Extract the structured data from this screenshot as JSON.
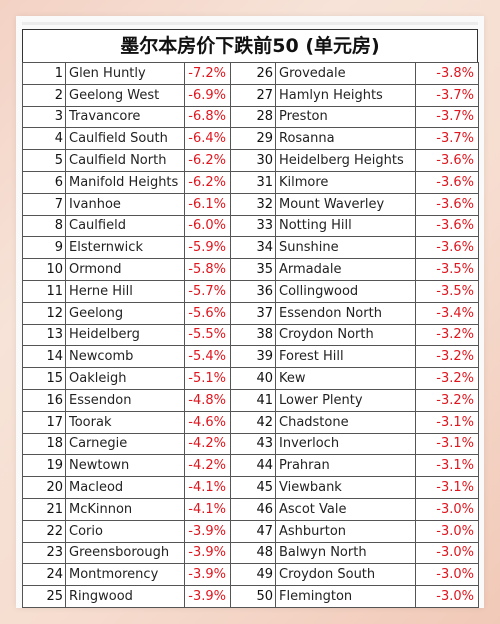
{
  "title": "墨尔本房价下跌前50 (单元房)",
  "rows": [
    {
      "left": {
        "rank": "1",
        "suburb": "Glen Huntly",
        "change": "-7.2%"
      },
      "right": {
        "rank": "26",
        "suburb": "Grovedale",
        "change": "-3.8%"
      }
    },
    {
      "left": {
        "rank": "2",
        "suburb": "Geelong West",
        "change": "-6.9%"
      },
      "right": {
        "rank": "27",
        "suburb": "Hamlyn Heights",
        "change": "-3.7%"
      }
    },
    {
      "left": {
        "rank": "3",
        "suburb": "Travancore",
        "change": "-6.8%"
      },
      "right": {
        "rank": "28",
        "suburb": "Preston",
        "change": "-3.7%"
      }
    },
    {
      "left": {
        "rank": "4",
        "suburb": "Caulfield South",
        "change": "-6.4%"
      },
      "right": {
        "rank": "29",
        "suburb": "Rosanna",
        "change": "-3.7%"
      }
    },
    {
      "left": {
        "rank": "5",
        "suburb": "Caulfield North",
        "change": "-6.2%"
      },
      "right": {
        "rank": "30",
        "suburb": "Heidelberg Heights",
        "change": "-3.6%"
      }
    },
    {
      "left": {
        "rank": "6",
        "suburb": "Manifold Heights",
        "change": "-6.2%"
      },
      "right": {
        "rank": "31",
        "suburb": "Kilmore",
        "change": "-3.6%"
      }
    },
    {
      "left": {
        "rank": "7",
        "suburb": "Ivanhoe",
        "change": "-6.1%"
      },
      "right": {
        "rank": "32",
        "suburb": "Mount Waverley",
        "change": "-3.6%"
      }
    },
    {
      "left": {
        "rank": "8",
        "suburb": "Caulfield",
        "change": "-6.0%"
      },
      "right": {
        "rank": "33",
        "suburb": "Notting Hill",
        "change": "-3.6%"
      }
    },
    {
      "left": {
        "rank": "9",
        "suburb": "Elsternwick",
        "change": "-5.9%"
      },
      "right": {
        "rank": "34",
        "suburb": "Sunshine",
        "change": "-3.6%"
      }
    },
    {
      "left": {
        "rank": "10",
        "suburb": "Ormond",
        "change": "-5.8%"
      },
      "right": {
        "rank": "35",
        "suburb": "Armadale",
        "change": "-3.5%"
      }
    },
    {
      "left": {
        "rank": "11",
        "suburb": "Herne Hill",
        "change": "-5.7%"
      },
      "right": {
        "rank": "36",
        "suburb": "Collingwood",
        "change": "-3.5%"
      }
    },
    {
      "left": {
        "rank": "12",
        "suburb": "Geelong",
        "change": "-5.6%"
      },
      "right": {
        "rank": "37",
        "suburb": "Essendon North",
        "change": "-3.4%"
      }
    },
    {
      "left": {
        "rank": "13",
        "suburb": "Heidelberg",
        "change": "-5.5%"
      },
      "right": {
        "rank": "38",
        "suburb": "Croydon North",
        "change": "-3.2%"
      }
    },
    {
      "left": {
        "rank": "14",
        "suburb": "Newcomb",
        "change": "-5.4%"
      },
      "right": {
        "rank": "39",
        "suburb": "Forest Hill",
        "change": "-3.2%"
      }
    },
    {
      "left": {
        "rank": "15",
        "suburb": "Oakleigh",
        "change": "-5.1%"
      },
      "right": {
        "rank": "40",
        "suburb": "Kew",
        "change": "-3.2%"
      }
    },
    {
      "left": {
        "rank": "16",
        "suburb": "Essendon",
        "change": "-4.8%"
      },
      "right": {
        "rank": "41",
        "suburb": "Lower Plenty",
        "change": "-3.2%"
      }
    },
    {
      "left": {
        "rank": "17",
        "suburb": "Toorak",
        "change": "-4.6%"
      },
      "right": {
        "rank": "42",
        "suburb": "Chadstone",
        "change": "-3.1%"
      }
    },
    {
      "left": {
        "rank": "18",
        "suburb": "Carnegie",
        "change": "-4.2%"
      },
      "right": {
        "rank": "43",
        "suburb": "Inverloch",
        "change": "-3.1%"
      }
    },
    {
      "left": {
        "rank": "19",
        "suburb": "Newtown",
        "change": "-4.2%"
      },
      "right": {
        "rank": "44",
        "suburb": "Prahran",
        "change": "-3.1%"
      }
    },
    {
      "left": {
        "rank": "20",
        "suburb": "Macleod",
        "change": "-4.1%"
      },
      "right": {
        "rank": "45",
        "suburb": "Viewbank",
        "change": "-3.1%"
      }
    },
    {
      "left": {
        "rank": "21",
        "suburb": "McKinnon",
        "change": "-4.1%"
      },
      "right": {
        "rank": "46",
        "suburb": "Ascot Vale",
        "change": "-3.0%"
      }
    },
    {
      "left": {
        "rank": "22",
        "suburb": "Corio",
        "change": "-3.9%"
      },
      "right": {
        "rank": "47",
        "suburb": "Ashburton",
        "change": "-3.0%"
      }
    },
    {
      "left": {
        "rank": "23",
        "suburb": "Greensborough",
        "change": "-3.9%"
      },
      "right": {
        "rank": "48",
        "suburb": "Balwyn North",
        "change": "-3.0%"
      }
    },
    {
      "left": {
        "rank": "24",
        "suburb": "Montmorency",
        "change": "-3.9%"
      },
      "right": {
        "rank": "49",
        "suburb": "Croydon South",
        "change": "-3.0%"
      }
    },
    {
      "left": {
        "rank": "25",
        "suburb": "Ringwood",
        "change": "-3.9%"
      },
      "right": {
        "rank": "50",
        "suburb": "Flemington",
        "change": "-3.0%"
      }
    }
  ],
  "colors": {
    "negative": "#e0161e",
    "text": "#222222",
    "background": "#f6ddd0"
  }
}
